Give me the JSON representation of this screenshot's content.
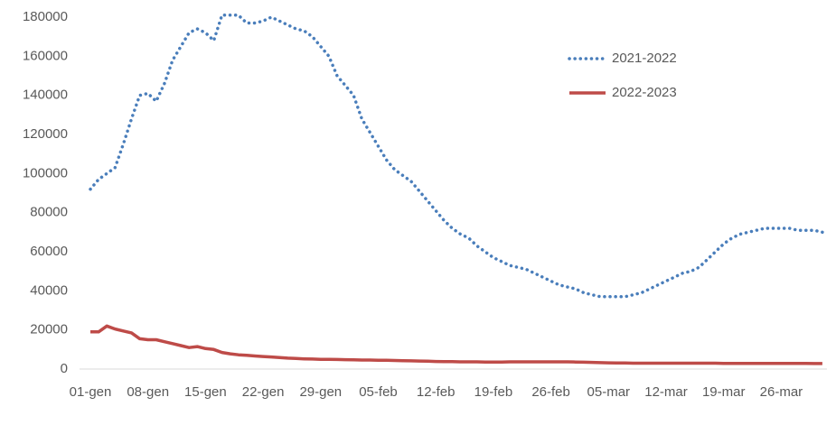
{
  "chart_data": {
    "type": "line",
    "categories": [
      "01-gen",
      null,
      null,
      null,
      null,
      null,
      null,
      "08-gen",
      null,
      null,
      null,
      null,
      null,
      null,
      "15-gen",
      null,
      null,
      null,
      null,
      null,
      null,
      "22-gen",
      null,
      null,
      null,
      null,
      null,
      null,
      "29-gen",
      null,
      null,
      null,
      null,
      null,
      null,
      "05-feb",
      null,
      null,
      null,
      null,
      null,
      null,
      "12-feb",
      null,
      null,
      null,
      null,
      null,
      null,
      "19-feb",
      null,
      null,
      null,
      null,
      null,
      null,
      "26-feb",
      null,
      null,
      null,
      null,
      null,
      null,
      "05-mar",
      null,
      null,
      null,
      null,
      null,
      null,
      "12-mar",
      null,
      null,
      null,
      null,
      null,
      null,
      "19-mar",
      null,
      null,
      null,
      null,
      null,
      null,
      "26-mar",
      null,
      null,
      null,
      null,
      null
    ],
    "series": [
      {
        "name": "2021-2022",
        "color": "#4a7ebb",
        "style": "dotted",
        "values": [
          92000,
          97000,
          100000,
          103000,
          115000,
          128000,
          140000,
          141000,
          137000,
          146000,
          158000,
          165000,
          172000,
          174000,
          172000,
          168000,
          181000,
          181000,
          181000,
          177000,
          177000,
          178000,
          180000,
          178000,
          176000,
          174000,
          173000,
          170000,
          165000,
          160000,
          150000,
          145000,
          140000,
          128000,
          121000,
          114000,
          107000,
          102000,
          99000,
          96000,
          91000,
          86000,
          81000,
          76000,
          72000,
          69000,
          67000,
          63000,
          60000,
          57000,
          55000,
          53000,
          52000,
          51000,
          49000,
          47000,
          45000,
          43000,
          42000,
          41000,
          39000,
          38000,
          37000,
          37000,
          37000,
          37000,
          38000,
          39000,
          41000,
          43000,
          45000,
          47000,
          49000,
          50000,
          52000,
          56000,
          60000,
          64000,
          67000,
          69000,
          70000,
          71000,
          72000,
          72000,
          72000,
          72000,
          71000,
          71000,
          71000,
          70000
        ]
      },
      {
        "name": "2022-2023",
        "color": "#be4b48",
        "style": "solid",
        "values": [
          19000,
          19000,
          22000,
          20500,
          19500,
          18500,
          15500,
          15000,
          15000,
          14000,
          13000,
          12000,
          11000,
          11500,
          10500,
          10000,
          8500,
          7800,
          7300,
          7000,
          6700,
          6400,
          6200,
          5900,
          5600,
          5400,
          5200,
          5100,
          5000,
          5000,
          4900,
          4800,
          4700,
          4600,
          4600,
          4500,
          4500,
          4400,
          4300,
          4200,
          4100,
          4000,
          3900,
          3800,
          3800,
          3700,
          3700,
          3700,
          3600,
          3600,
          3600,
          3700,
          3700,
          3700,
          3700,
          3700,
          3700,
          3700,
          3700,
          3600,
          3500,
          3400,
          3300,
          3200,
          3100,
          3100,
          3000,
          3000,
          3000,
          3000,
          3000,
          3000,
          3000,
          3000,
          3000,
          3000,
          3000,
          2900,
          2900,
          2900,
          2900,
          2900,
          2900,
          2900,
          2900,
          2900,
          2900,
          2900,
          2800,
          2800
        ]
      }
    ],
    "ylim": [
      0,
      180000
    ],
    "yticks": [
      0,
      20000,
      40000,
      60000,
      80000,
      100000,
      120000,
      140000,
      160000,
      180000
    ],
    "grid": false,
    "legend": "top-right"
  }
}
